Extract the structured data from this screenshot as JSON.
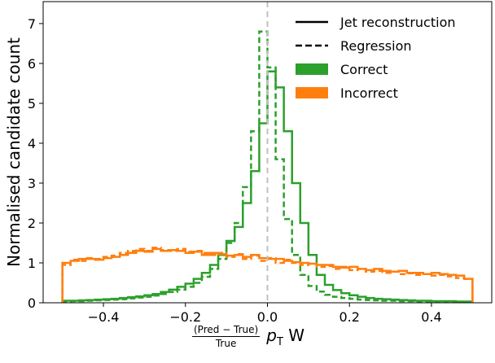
{
  "chart_data": {
    "type": "histogram-step",
    "xlabel": {
      "numerator": "(Pred − True)",
      "denominator": "True",
      "quantity": "p",
      "subscript": "T",
      "suffix": "W"
    },
    "ylabel": "Normalised candidate count",
    "xlim": [
      -0.547,
      0.547
    ],
    "ylim": [
      0,
      7.55
    ],
    "xticks": [
      -0.4,
      -0.2,
      0.0,
      0.2,
      0.4
    ],
    "xtick_labels": [
      "−0.4",
      "−0.2",
      "0.0",
      "0.2",
      "0.4"
    ],
    "yticks": [
      0,
      1,
      2,
      3,
      4,
      5,
      6,
      7
    ],
    "ytick_labels": [
      "0",
      "1",
      "2",
      "3",
      "4",
      "5",
      "6",
      "7"
    ],
    "bin_edges_start": -0.5,
    "bin_width": 0.02,
    "reference_line_x": 0.0,
    "legend": {
      "placement": "top-right",
      "entries": [
        {
          "label": "Jet reconstruction",
          "style": "solid",
          "color": "#000000"
        },
        {
          "label": "Regression",
          "style": "dashed",
          "color": "#000000"
        },
        {
          "label": "Correct",
          "style": "patch",
          "color": "#2ca02c"
        },
        {
          "label": "Incorrect",
          "style": "patch",
          "color": "#ff7f0e"
        }
      ]
    },
    "series": [
      {
        "category": "Correct",
        "method": "Regression",
        "color": "#2ca02c",
        "dashed": true,
        "values": [
          0.03,
          0.04,
          0.04,
          0.05,
          0.06,
          0.07,
          0.08,
          0.09,
          0.11,
          0.13,
          0.15,
          0.18,
          0.22,
          0.27,
          0.33,
          0.4,
          0.5,
          0.65,
          0.85,
          1.1,
          1.5,
          2.0,
          2.9,
          4.3,
          6.8,
          5.9,
          3.6,
          2.1,
          1.2,
          0.7,
          0.42,
          0.28,
          0.2,
          0.15,
          0.12,
          0.1,
          0.08,
          0.07,
          0.06,
          0.05,
          0.05,
          0.04,
          0.04,
          0.03,
          0.03,
          0.03,
          0.03,
          0.02,
          0.02,
          0.02
        ]
      },
      {
        "category": "Correct",
        "method": "Jet reconstruction",
        "color": "#2ca02c",
        "dashed": false,
        "values": [
          0.05,
          0.05,
          0.06,
          0.07,
          0.08,
          0.09,
          0.1,
          0.12,
          0.14,
          0.16,
          0.19,
          0.22,
          0.27,
          0.33,
          0.4,
          0.48,
          0.6,
          0.75,
          0.95,
          1.2,
          1.55,
          1.9,
          2.5,
          3.3,
          4.5,
          5.8,
          5.4,
          4.3,
          3.0,
          2.0,
          1.2,
          0.7,
          0.45,
          0.32,
          0.24,
          0.19,
          0.15,
          0.12,
          0.1,
          0.09,
          0.08,
          0.07,
          0.06,
          0.05,
          0.05,
          0.04,
          0.04,
          0.04,
          0.03,
          0.03
        ]
      },
      {
        "category": "Incorrect",
        "method": "Regression",
        "color": "#ff7f0e",
        "dashed": true,
        "values": [
          0.95,
          1.08,
          1.05,
          1.12,
          1.1,
          1.15,
          1.18,
          1.25,
          1.3,
          1.35,
          1.3,
          1.38,
          1.32,
          1.3,
          1.35,
          1.28,
          1.3,
          1.25,
          1.2,
          1.25,
          1.15,
          1.22,
          1.1,
          1.18,
          1.05,
          1.12,
          1.0,
          1.08,
          1.0,
          0.95,
          0.98,
          0.9,
          0.92,
          0.85,
          0.9,
          0.82,
          0.85,
          0.78,
          0.8,
          0.75,
          0.78,
          0.72,
          0.74,
          0.7,
          0.72,
          0.68,
          0.7,
          0.66,
          0.62,
          0.6
        ]
      },
      {
        "category": "Incorrect",
        "method": "Jet reconstruction",
        "color": "#ff7f0e",
        "dashed": false,
        "values": [
          1.0,
          1.05,
          1.1,
          1.1,
          1.08,
          1.12,
          1.15,
          1.2,
          1.25,
          1.3,
          1.28,
          1.35,
          1.3,
          1.32,
          1.3,
          1.25,
          1.28,
          1.2,
          1.25,
          1.22,
          1.18,
          1.2,
          1.15,
          1.2,
          1.12,
          1.1,
          1.1,
          1.05,
          1.02,
          1.0,
          0.98,
          0.95,
          0.95,
          0.9,
          0.88,
          0.9,
          0.85,
          0.82,
          0.85,
          0.8,
          0.78,
          0.8,
          0.75,
          0.75,
          0.72,
          0.75,
          0.72,
          0.7,
          0.68,
          0.6
        ]
      }
    ]
  }
}
